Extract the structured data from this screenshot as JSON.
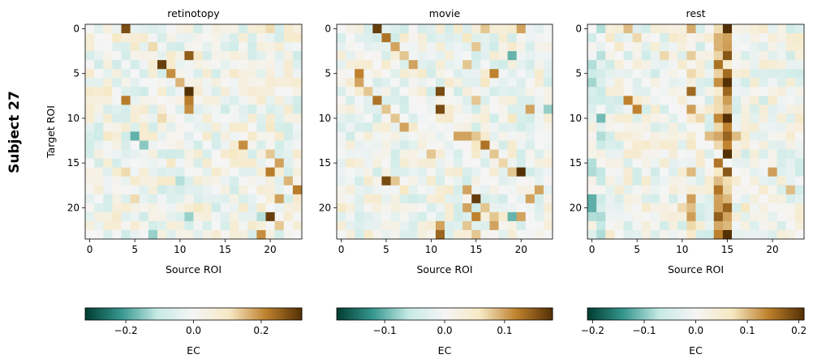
{
  "figure_label": "Subject 27",
  "colormap": [
    "#003c30",
    "#35978f",
    "#c7eae5",
    "#f5f5f5",
    "#f6e8c3",
    "#bf812d",
    "#543005"
  ],
  "chart_data": [
    {
      "type": "heatmap",
      "title": "retinotopy",
      "xlabel": "Source ROI",
      "ylabel": "Target ROI",
      "size": 24,
      "xticks": [
        0,
        5,
        10,
        15,
        20
      ],
      "yticks": [
        0,
        5,
        10,
        15,
        20
      ],
      "vlim": [
        -0.32,
        0.32
      ],
      "colorbar": {
        "label": "EC",
        "ticks": [
          -0.2,
          0.0,
          0.2
        ],
        "tick_labels": [
          "−0.2",
          "0.0",
          "0.2"
        ]
      },
      "overrides": [
        {
          "r": 0,
          "c": 4,
          "v": 0.28
        },
        {
          "r": 0,
          "c": 20,
          "v": 0.12
        },
        {
          "r": 0,
          "c": 22,
          "v": 0.08
        },
        {
          "r": 1,
          "c": 3,
          "v": 0.1
        },
        {
          "r": 1,
          "c": 6,
          "v": 0.08
        },
        {
          "r": 2,
          "c": 7,
          "v": 0.12
        },
        {
          "r": 3,
          "c": 11,
          "v": 0.26
        },
        {
          "r": 4,
          "c": 8,
          "v": 0.3
        },
        {
          "r": 5,
          "c": 9,
          "v": 0.2
        },
        {
          "r": 6,
          "c": 10,
          "v": 0.16
        },
        {
          "r": 7,
          "c": 11,
          "v": 0.32
        },
        {
          "r": 7,
          "c": 2,
          "v": 0.1
        },
        {
          "r": 8,
          "c": 4,
          "v": 0.22
        },
        {
          "r": 8,
          "c": 11,
          "v": 0.22
        },
        {
          "r": 8,
          "c": 19,
          "v": 0.08
        },
        {
          "r": 9,
          "c": 11,
          "v": 0.2
        },
        {
          "r": 9,
          "c": 9,
          "v": -0.12
        },
        {
          "r": 10,
          "c": 8,
          "v": 0.12
        },
        {
          "r": 11,
          "c": 20,
          "v": 0.1
        },
        {
          "r": 12,
          "c": 5,
          "v": -0.18
        },
        {
          "r": 12,
          "c": 2,
          "v": 0.1
        },
        {
          "r": 13,
          "c": 17,
          "v": 0.2
        },
        {
          "r": 13,
          "c": 6,
          "v": -0.15
        },
        {
          "r": 14,
          "c": 20,
          "v": 0.14
        },
        {
          "r": 14,
          "c": 16,
          "v": 0.1
        },
        {
          "r": 15,
          "c": 21,
          "v": 0.18
        },
        {
          "r": 15,
          "c": 9,
          "v": 0.1
        },
        {
          "r": 16,
          "c": 20,
          "v": 0.22
        },
        {
          "r": 16,
          "c": 4,
          "v": 0.12
        },
        {
          "r": 17,
          "c": 22,
          "v": 0.16
        },
        {
          "r": 17,
          "c": 10,
          "v": -0.12
        },
        {
          "r": 18,
          "c": 23,
          "v": 0.22
        },
        {
          "r": 18,
          "c": 18,
          "v": 0.1
        },
        {
          "r": 19,
          "c": 21,
          "v": 0.18
        },
        {
          "r": 19,
          "c": 5,
          "v": 0.12
        },
        {
          "r": 20,
          "c": 12,
          "v": 0.1
        },
        {
          "r": 21,
          "c": 20,
          "v": 0.3
        },
        {
          "r": 21,
          "c": 19,
          "v": -0.12
        },
        {
          "r": 21,
          "c": 11,
          "v": -0.14
        },
        {
          "r": 22,
          "c": 21,
          "v": 0.14
        },
        {
          "r": 23,
          "c": 19,
          "v": 0.2
        },
        {
          "r": 23,
          "c": 7,
          "v": -0.14
        }
      ]
    },
    {
      "type": "heatmap",
      "title": "movie",
      "xlabel": "Source ROI",
      "ylabel": "",
      "size": 24,
      "xticks": [
        0,
        5,
        10,
        15,
        20
      ],
      "yticks": [
        0,
        5,
        10,
        15,
        20
      ],
      "vlim": [
        -0.18,
        0.18
      ],
      "colorbar": {
        "label": "EC",
        "ticks": [
          -0.1,
          0.0,
          0.1
        ],
        "tick_labels": [
          "−0.1",
          "0.0",
          "0.1"
        ]
      },
      "overrides": [
        {
          "r": 0,
          "c": 4,
          "v": 0.17
        },
        {
          "r": 0,
          "c": 16,
          "v": 0.08
        },
        {
          "r": 0,
          "c": 20,
          "v": 0.1
        },
        {
          "r": 1,
          "c": 5,
          "v": 0.13
        },
        {
          "r": 1,
          "c": 14,
          "v": 0.06
        },
        {
          "r": 2,
          "c": 6,
          "v": 0.1
        },
        {
          "r": 2,
          "c": 15,
          "v": 0.08
        },
        {
          "r": 3,
          "c": 7,
          "v": 0.08
        },
        {
          "r": 3,
          "c": 19,
          "v": -0.1
        },
        {
          "r": 4,
          "c": 8,
          "v": 0.1
        },
        {
          "r": 4,
          "c": 14,
          "v": 0.08
        },
        {
          "r": 5,
          "c": 2,
          "v": 0.12
        },
        {
          "r": 5,
          "c": 17,
          "v": 0.12
        },
        {
          "r": 6,
          "c": 2,
          "v": 0.1
        },
        {
          "r": 6,
          "c": 16,
          "v": 0.06
        },
        {
          "r": 7,
          "c": 11,
          "v": 0.16
        },
        {
          "r": 7,
          "c": 3,
          "v": 0.08
        },
        {
          "r": 8,
          "c": 4,
          "v": 0.13
        },
        {
          "r": 8,
          "c": 15,
          "v": 0.08
        },
        {
          "r": 9,
          "c": 11,
          "v": 0.16
        },
        {
          "r": 9,
          "c": 5,
          "v": 0.08
        },
        {
          "r": 9,
          "c": 21,
          "v": 0.1
        },
        {
          "r": 9,
          "c": 23,
          "v": -0.08
        },
        {
          "r": 10,
          "c": 6,
          "v": 0.08
        },
        {
          "r": 10,
          "c": 19,
          "v": 0.06
        },
        {
          "r": 11,
          "c": 7,
          "v": 0.1
        },
        {
          "r": 12,
          "c": 13,
          "v": 0.1
        },
        {
          "r": 12,
          "c": 14,
          "v": 0.1
        },
        {
          "r": 12,
          "c": 15,
          "v": 0.08
        },
        {
          "r": 13,
          "c": 15,
          "v": 0.06
        },
        {
          "r": 13,
          "c": 16,
          "v": 0.13
        },
        {
          "r": 14,
          "c": 17,
          "v": 0.08
        },
        {
          "r": 14,
          "c": 10,
          "v": 0.08
        },
        {
          "r": 15,
          "c": 18,
          "v": 0.07
        },
        {
          "r": 16,
          "c": 20,
          "v": 0.18
        },
        {
          "r": 16,
          "c": 19,
          "v": 0.08
        },
        {
          "r": 17,
          "c": 5,
          "v": 0.16
        },
        {
          "r": 17,
          "c": 6,
          "v": 0.08
        },
        {
          "r": 18,
          "c": 14,
          "v": 0.1
        },
        {
          "r": 18,
          "c": 22,
          "v": 0.1
        },
        {
          "r": 18,
          "c": 7,
          "v": 0.06
        },
        {
          "r": 19,
          "c": 15,
          "v": 0.17
        },
        {
          "r": 19,
          "c": 21,
          "v": 0.1
        },
        {
          "r": 20,
          "c": 14,
          "v": 0.1
        },
        {
          "r": 20,
          "c": 16,
          "v": 0.08
        },
        {
          "r": 21,
          "c": 15,
          "v": 0.12
        },
        {
          "r": 21,
          "c": 19,
          "v": -0.1
        },
        {
          "r": 21,
          "c": 20,
          "v": 0.1
        },
        {
          "r": 21,
          "c": 17,
          "v": 0.08
        },
        {
          "r": 22,
          "c": 11,
          "v": 0.1
        },
        {
          "r": 22,
          "c": 14,
          "v": 0.08
        },
        {
          "r": 22,
          "c": 17,
          "v": 0.1
        },
        {
          "r": 23,
          "c": 11,
          "v": 0.14
        },
        {
          "r": 23,
          "c": 15,
          "v": 0.08
        }
      ]
    },
    {
      "type": "heatmap",
      "title": "rest",
      "xlabel": "Source ROI",
      "ylabel": "",
      "size": 24,
      "xticks": [
        0,
        5,
        10,
        15,
        20
      ],
      "yticks": [
        0,
        5,
        10,
        15,
        20
      ],
      "vlim": [
        -0.21,
        0.21
      ],
      "colorbar": {
        "label": "EC",
        "ticks": [
          -0.2,
          -0.1,
          0.0,
          0.1,
          0.2
        ],
        "tick_labels": [
          "−0.2",
          "−0.1",
          "0.0",
          "0.1",
          "0.2"
        ]
      },
      "column_bias": [
        {
          "c": 14,
          "v": 0.1
        },
        {
          "c": 15,
          "v": 0.18
        },
        {
          "c": 11,
          "v": 0.05
        },
        {
          "c": 1,
          "v": -0.05
        },
        {
          "c": 0,
          "v": -0.03
        }
      ],
      "overrides": [
        {
          "r": 0,
          "c": 4,
          "v": 0.1
        },
        {
          "r": 1,
          "c": 5,
          "v": 0.08
        },
        {
          "r": 1,
          "c": 2,
          "v": 0.06
        },
        {
          "r": 2,
          "c": 3,
          "v": 0.06
        },
        {
          "r": 3,
          "c": 8,
          "v": 0.08
        },
        {
          "r": 7,
          "c": 11,
          "v": 0.16
        },
        {
          "r": 8,
          "c": 4,
          "v": 0.14
        },
        {
          "r": 9,
          "c": 5,
          "v": 0.14
        },
        {
          "r": 9,
          "c": 11,
          "v": 0.12
        },
        {
          "r": 10,
          "c": 12,
          "v": 0.08
        },
        {
          "r": 12,
          "c": 13,
          "v": 0.1
        },
        {
          "r": 12,
          "c": 16,
          "v": 0.1
        },
        {
          "r": 13,
          "c": 14,
          "v": 0.08
        },
        {
          "r": 14,
          "c": 15,
          "v": 0.21
        },
        {
          "r": 15,
          "c": 14,
          "v": 0.15
        },
        {
          "r": 16,
          "c": 20,
          "v": 0.12
        },
        {
          "r": 17,
          "c": 14,
          "v": 0.1
        },
        {
          "r": 18,
          "c": 14,
          "v": 0.15
        },
        {
          "r": 18,
          "c": 22,
          "v": 0.1
        },
        {
          "r": 19,
          "c": 11,
          "v": 0.12
        },
        {
          "r": 20,
          "c": 10,
          "v": 0.08
        },
        {
          "r": 20,
          "c": 17,
          "v": 0.07
        },
        {
          "r": 21,
          "c": 14,
          "v": 0.17
        },
        {
          "r": 21,
          "c": 11,
          "v": 0.12
        },
        {
          "r": 19,
          "c": 0,
          "v": -0.12
        },
        {
          "r": 20,
          "c": 0,
          "v": -0.12
        },
        {
          "r": 21,
          "c": 0,
          "v": -0.08
        }
      ]
    }
  ]
}
